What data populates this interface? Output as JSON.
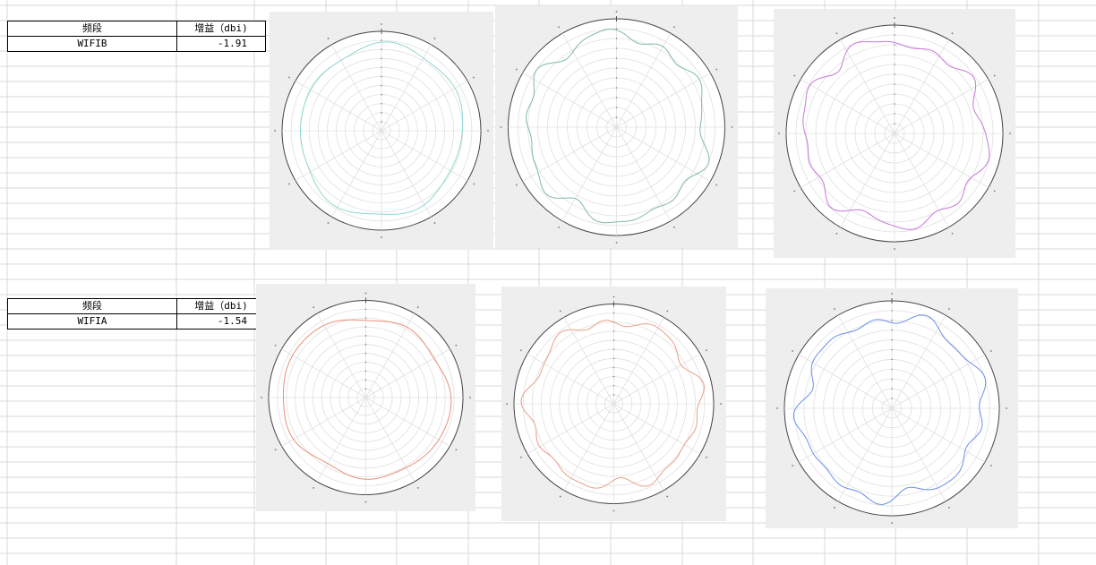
{
  "sections": [
    {
      "table": {
        "headers": [
          "频段",
          "增益（dbi)"
        ],
        "rows": [
          [
            "WIFIB",
            "-1.91"
          ]
        ]
      },
      "plots": [
        {
          "color": "#8fd8d0",
          "smoothness": "smooth"
        },
        {
          "color": "#7fb8b0",
          "smoothness": "wavy"
        },
        {
          "color": "#c877d8",
          "smoothness": "wavy"
        }
      ]
    },
    {
      "table": {
        "headers": [
          "频段",
          "增益（dbi)"
        ],
        "rows": [
          [
            "WIFIA",
            "-1.54"
          ]
        ]
      },
      "plots": [
        {
          "color": "#e89078",
          "smoothness": "smooth"
        },
        {
          "color": "#e8a088",
          "smoothness": "wavy"
        },
        {
          "color": "#6b8ee8",
          "smoothness": "wavy"
        }
      ]
    }
  ]
}
